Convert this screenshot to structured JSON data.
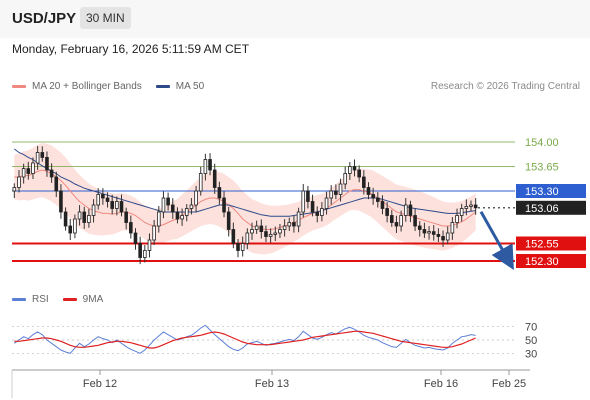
{
  "header": {
    "symbol": "USD/JPY",
    "timeframe": "30 MIN"
  },
  "datetime": "Monday, February 16, 2026 5:11:59 AM CET",
  "legend": {
    "bollinger": {
      "label": "MA 20 + Bollinger Bands",
      "color": "#f08a80"
    },
    "ma50": {
      "label": "MA 50",
      "color": "#2d4a8a"
    },
    "rsi": {
      "label": "RSI",
      "color": "#5b7fd6"
    },
    "rsi_ma": {
      "label": "9MA",
      "color": "#e02020"
    }
  },
  "credit": "Research © 2026 Trading Central",
  "chart_data": [
    {
      "type": "candlestick",
      "x_labels": [
        "Feb 12",
        "Feb 13",
        "Feb 16",
        "Feb 25"
      ],
      "levels": [
        {
          "value": 154.0,
          "label": "154.00",
          "kind": "resistance",
          "color": "#7aaa4a"
        },
        {
          "value": 153.65,
          "label": "153.65",
          "kind": "resistance",
          "color": "#7aaa4a"
        },
        {
          "value": 153.3,
          "label": "153.30",
          "kind": "pivot",
          "color": "#2d5fd0"
        },
        {
          "value": 153.06,
          "label": "153.06",
          "kind": "last-price",
          "color": "#222222"
        },
        {
          "value": 152.55,
          "label": "152.55",
          "kind": "support",
          "color": "#e01010"
        },
        {
          "value": 152.3,
          "label": "152.30",
          "kind": "support",
          "color": "#e01010"
        }
      ],
      "ylim": [
        152.0,
        154.6
      ],
      "close": [
        153.35,
        153.5,
        153.62,
        153.55,
        153.7,
        153.85,
        153.78,
        153.6,
        153.5,
        153.3,
        153.0,
        152.8,
        152.7,
        152.9,
        153.0,
        152.85,
        152.95,
        153.1,
        153.25,
        153.2,
        153.15,
        153.05,
        153.15,
        153.0,
        152.85,
        152.7,
        152.55,
        152.35,
        152.45,
        152.6,
        152.8,
        153.0,
        153.2,
        153.1,
        153.0,
        152.9,
        152.95,
        153.05,
        153.1,
        153.3,
        153.55,
        153.75,
        153.6,
        153.35,
        153.2,
        153.0,
        152.75,
        152.55,
        152.45,
        152.55,
        152.7,
        152.75,
        152.8,
        152.72,
        152.65,
        152.68,
        152.7,
        152.75,
        152.8,
        152.85,
        152.8,
        153.0,
        153.3,
        153.15,
        153.0,
        152.95,
        153.05,
        153.2,
        153.3,
        153.25,
        153.4,
        153.55,
        153.65,
        153.6,
        153.5,
        153.35,
        153.25,
        153.2,
        153.15,
        153.05,
        152.95,
        152.85,
        152.8,
        152.95,
        153.1,
        152.95,
        152.8,
        152.75,
        152.7,
        152.72,
        152.68,
        152.65,
        152.6,
        152.7,
        152.85,
        152.95,
        153.05,
        153.08,
        153.1,
        153.06
      ],
      "ma20": [
        153.5,
        153.5,
        153.52,
        153.52,
        153.55,
        153.58,
        153.6,
        153.58,
        153.55,
        153.5,
        153.45,
        153.38,
        153.3,
        153.22,
        153.15,
        153.1,
        153.05,
        153.02,
        153.0,
        152.98,
        152.98,
        152.97,
        152.98,
        153.0,
        153.0,
        152.98,
        152.95,
        152.9,
        152.85,
        152.82,
        152.8,
        152.8,
        152.82,
        152.85,
        152.88,
        152.9,
        152.95,
        153.0,
        153.05,
        153.1,
        153.15,
        153.18,
        153.2,
        153.2,
        153.18,
        153.15,
        153.1,
        153.05,
        152.98,
        152.9,
        152.85,
        152.8,
        152.78,
        152.76,
        152.75,
        152.75,
        152.76,
        152.78,
        152.8,
        152.82,
        152.85,
        152.88,
        152.92,
        152.95,
        152.98,
        153.0,
        153.02,
        153.05,
        153.1,
        153.15,
        153.2,
        153.25,
        153.3,
        153.32,
        153.32,
        153.3,
        153.28,
        153.25,
        153.2,
        153.15,
        153.1,
        153.05,
        153.0,
        152.98,
        152.96,
        152.94,
        152.92,
        152.9,
        152.88,
        152.86,
        152.84,
        152.82,
        152.8,
        152.8,
        152.81,
        152.83,
        152.86,
        152.9,
        152.95,
        153.0
      ],
      "ma50": [
        153.9,
        153.85,
        153.82,
        153.78,
        153.75,
        153.7,
        153.66,
        153.62,
        153.58,
        153.55,
        153.5,
        153.47,
        153.44,
        153.4,
        153.37,
        153.34,
        153.32,
        153.3,
        153.28,
        153.26,
        153.24,
        153.22,
        153.2,
        153.18,
        153.16,
        153.14,
        153.12,
        153.1,
        153.08,
        153.06,
        153.04,
        153.02,
        153.0,
        153.0,
        153.0,
        153.0,
        153.0,
        153.0,
        153.0,
        153.0,
        153.02,
        153.04,
        153.06,
        153.08,
        153.1,
        153.1,
        153.1,
        153.08,
        153.06,
        153.04,
        153.02,
        153.0,
        152.98,
        152.96,
        152.95,
        152.94,
        152.94,
        152.94,
        152.94,
        152.94,
        152.95,
        152.96,
        152.97,
        152.98,
        152.99,
        153.0,
        153.02,
        153.04,
        153.06,
        153.08,
        153.1,
        153.12,
        153.14,
        153.16,
        153.18,
        153.2,
        153.2,
        153.2,
        153.2,
        153.18,
        153.16,
        153.14,
        153.12,
        153.1,
        153.08,
        153.06,
        153.05,
        153.04,
        153.03,
        153.02,
        153.01,
        153.0,
        152.99,
        152.98,
        152.98,
        152.98,
        152.99,
        153.0,
        153.01,
        153.02
      ]
    },
    {
      "type": "line",
      "ylim": [
        20,
        80
      ],
      "y_ticks": [
        30,
        50,
        70
      ],
      "rsi": [
        45,
        50,
        55,
        52,
        58,
        62,
        58,
        50,
        45,
        40,
        35,
        32,
        30,
        38,
        45,
        40,
        44,
        50,
        55,
        52,
        50,
        46,
        50,
        45,
        40,
        36,
        33,
        30,
        35,
        42,
        50,
        56,
        62,
        58,
        54,
        50,
        52,
        55,
        57,
        62,
        68,
        72,
        65,
        58,
        52,
        46,
        40,
        36,
        34,
        38,
        44,
        46,
        48,
        45,
        42,
        44,
        45,
        47,
        49,
        51,
        49,
        55,
        63,
        58,
        53,
        51,
        54,
        58,
        61,
        59,
        63,
        67,
        69,
        66,
        62,
        57,
        54,
        52,
        50,
        46,
        43,
        40,
        39,
        45,
        51,
        46,
        42,
        40,
        38,
        39,
        37,
        36,
        35,
        38,
        45,
        50,
        55,
        56,
        58,
        57
      ],
      "rsi_ma": [
        48,
        48,
        49,
        50,
        51,
        52,
        53,
        53,
        52,
        50,
        48,
        45,
        42,
        40,
        39,
        39,
        40,
        41,
        42,
        44,
        46,
        47,
        48,
        48,
        47,
        46,
        44,
        42,
        40,
        38,
        38,
        40,
        43,
        46,
        49,
        51,
        53,
        54,
        55,
        56,
        57,
        59,
        61,
        62,
        61,
        59,
        56,
        53,
        50,
        47,
        45,
        44,
        43,
        43,
        43,
        43,
        44,
        45,
        46,
        47,
        48,
        49,
        50,
        52,
        54,
        55,
        56,
        57,
        58,
        59,
        60,
        61,
        62,
        63,
        63,
        62,
        61,
        60,
        58,
        56,
        54,
        52,
        50,
        48,
        47,
        46,
        45,
        44,
        43,
        42,
        41,
        40,
        39,
        39,
        40,
        42,
        44,
        47,
        50,
        53
      ]
    }
  ]
}
